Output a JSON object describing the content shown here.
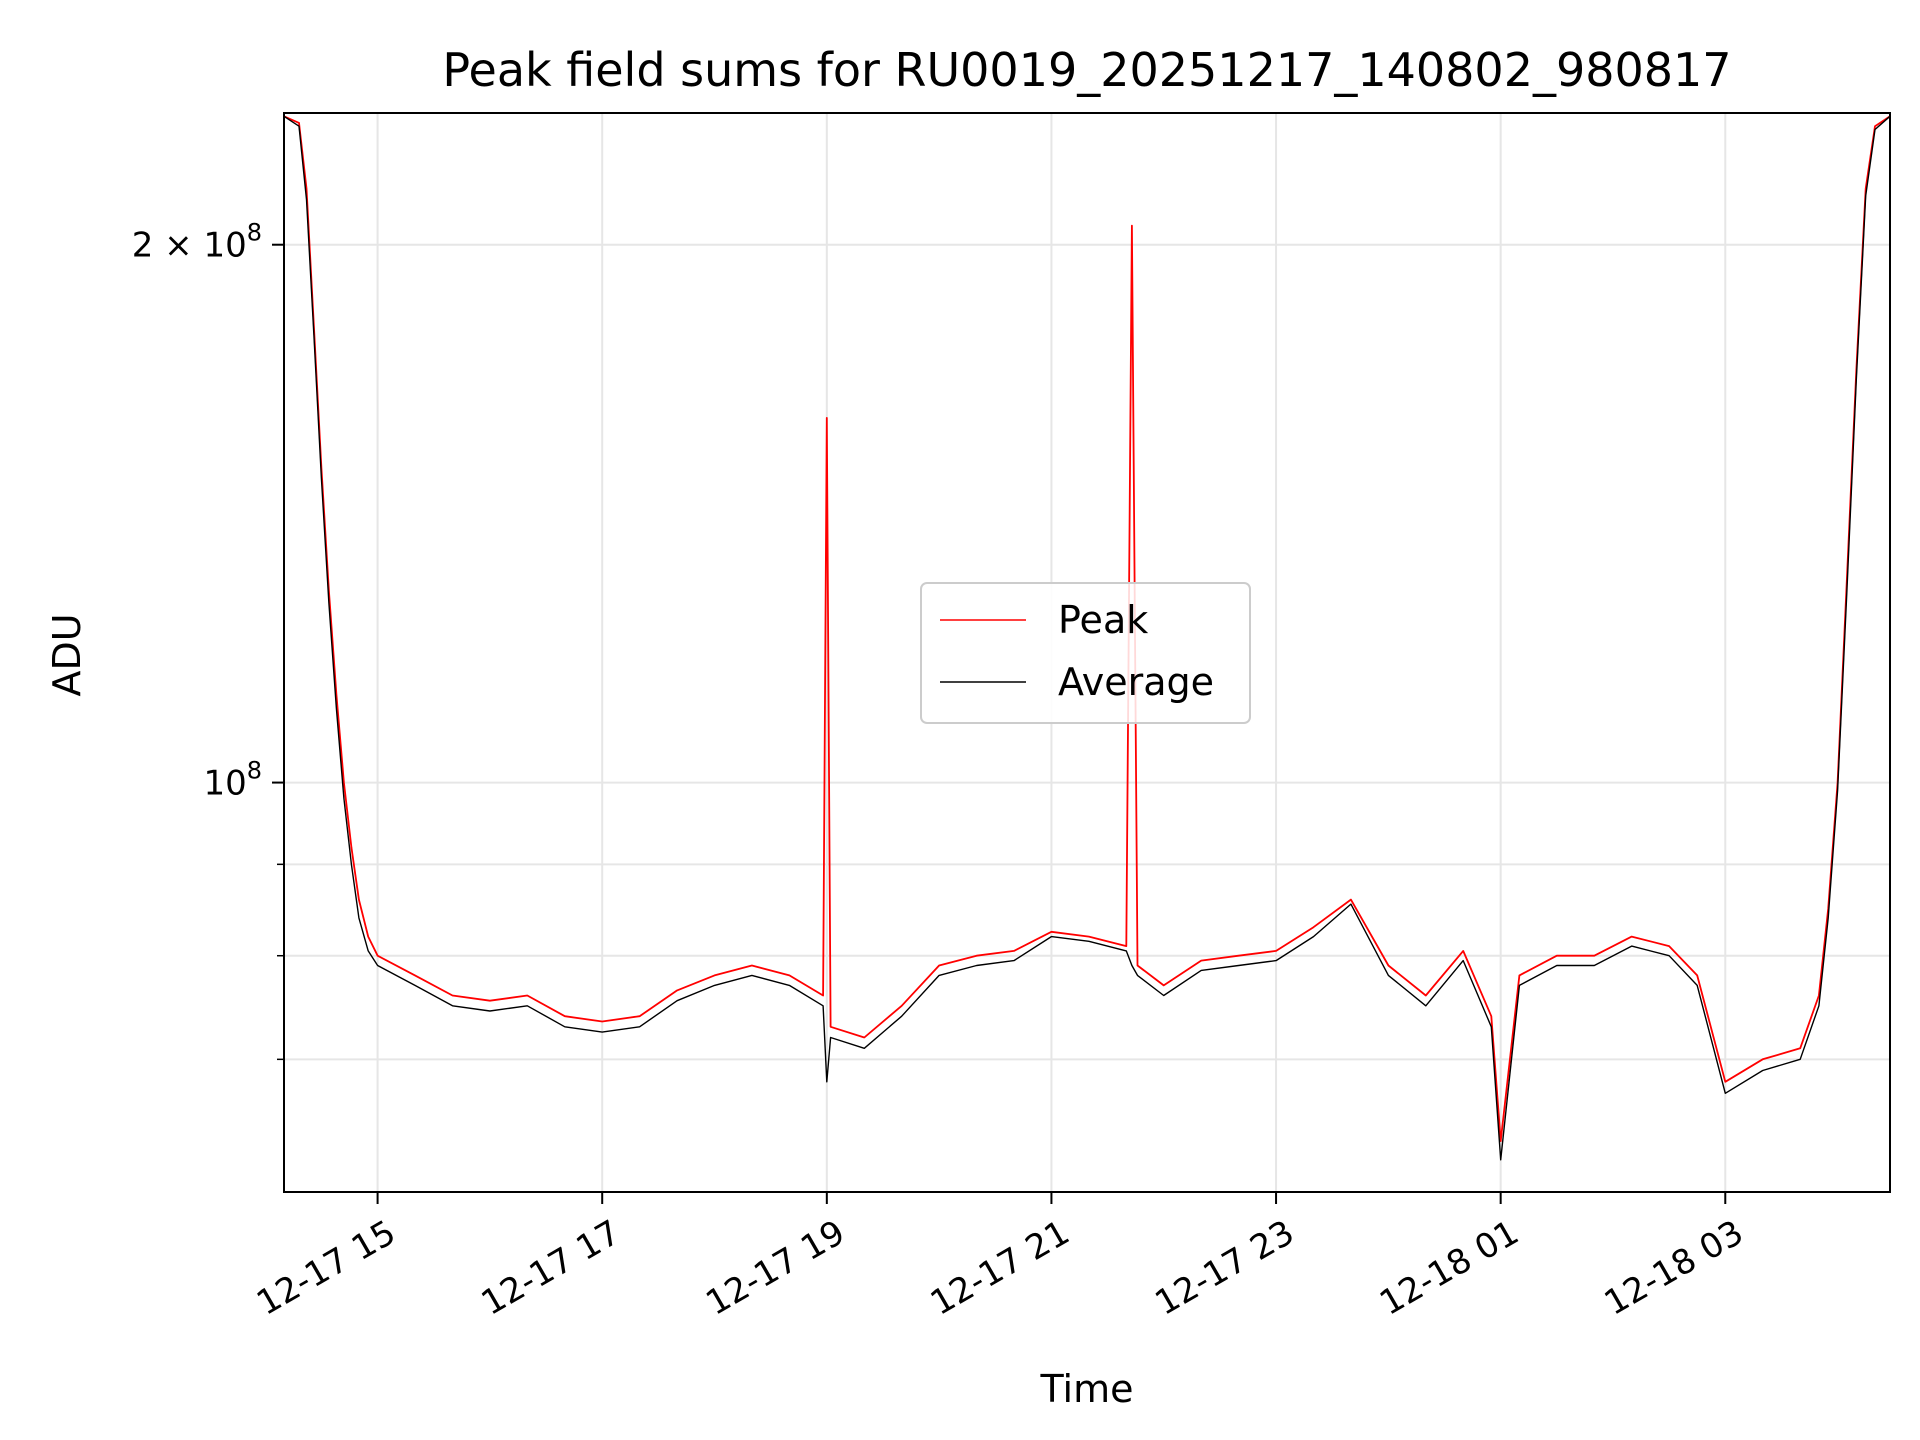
{
  "chart_data": {
    "type": "line",
    "title": "Peak field sums for RU0019_20251217_140802_980817",
    "xlabel": "Time",
    "ylabel": "ADU",
    "yscale": "log",
    "xlim": [
      "2025-12-17 14:10",
      "2025-12-18 04:28"
    ],
    "ylim": [
      59000000,
      237000000
    ],
    "grid": true,
    "legend_placement": "center",
    "x_ticks": [
      {
        "t": "2025-12-17 15:00",
        "label": "12-17 15"
      },
      {
        "t": "2025-12-17 17:00",
        "label": "12-17 17"
      },
      {
        "t": "2025-12-17 19:00",
        "label": "12-17 19"
      },
      {
        "t": "2025-12-17 21:00",
        "label": "12-17 21"
      },
      {
        "t": "2025-12-17 23:00",
        "label": "12-17 23"
      },
      {
        "t": "2025-12-18 01:00",
        "label": "12-18 01"
      },
      {
        "t": "2025-12-18 03:00",
        "label": "12-18 03"
      }
    ],
    "y_ticks_major": [
      {
        "value": 100000000,
        "base": "10",
        "exp": "8",
        "mantissa": ""
      },
      {
        "value": 200000000,
        "base": "10",
        "exp": "8",
        "mantissa": "2 × "
      }
    ],
    "y_minor_gridlines": [
      70000000,
      80000000,
      90000000
    ],
    "series": [
      {
        "name": "Peak",
        "color": "#ff0000",
        "points": [
          [
            "2025-12-17 14:10",
            236000000
          ],
          [
            "2025-12-17 14:18",
            234000000
          ],
          [
            "2025-12-17 14:22",
            215000000
          ],
          [
            "2025-12-17 14:26",
            180000000
          ],
          [
            "2025-12-17 14:30",
            150000000
          ],
          [
            "2025-12-17 14:34",
            128000000
          ],
          [
            "2025-12-17 14:38",
            112000000
          ],
          [
            "2025-12-17 14:42",
            100000000
          ],
          [
            "2025-12-17 14:46",
            92000000
          ],
          [
            "2025-12-17 14:50",
            86000000
          ],
          [
            "2025-12-17 14:55",
            82000000
          ],
          [
            "2025-12-17 15:00",
            80000000
          ],
          [
            "2025-12-17 15:20",
            78000000
          ],
          [
            "2025-12-17 15:40",
            76000000
          ],
          [
            "2025-12-17 16:00",
            75500000
          ],
          [
            "2025-12-17 16:20",
            76000000
          ],
          [
            "2025-12-17 16:40",
            74000000
          ],
          [
            "2025-12-17 17:00",
            73500000
          ],
          [
            "2025-12-17 17:20",
            74000000
          ],
          [
            "2025-12-17 17:40",
            76500000
          ],
          [
            "2025-12-17 18:00",
            78000000
          ],
          [
            "2025-12-17 18:20",
            79000000
          ],
          [
            "2025-12-17 18:40",
            78000000
          ],
          [
            "2025-12-17 18:58",
            76000000
          ],
          [
            "2025-12-17 19:00",
            160000000
          ],
          [
            "2025-12-17 19:02",
            73000000
          ],
          [
            "2025-12-17 19:20",
            72000000
          ],
          [
            "2025-12-17 19:40",
            75000000
          ],
          [
            "2025-12-17 20:00",
            79000000
          ],
          [
            "2025-12-17 20:20",
            80000000
          ],
          [
            "2025-12-17 20:40",
            80500000
          ],
          [
            "2025-12-17 21:00",
            82500000
          ],
          [
            "2025-12-17 21:20",
            82000000
          ],
          [
            "2025-12-17 21:40",
            81000000
          ],
          [
            "2025-12-17 21:43",
            205000000
          ],
          [
            "2025-12-17 21:46",
            79000000
          ],
          [
            "2025-12-17 22:00",
            77000000
          ],
          [
            "2025-12-17 22:20",
            79500000
          ],
          [
            "2025-12-17 22:40",
            80000000
          ],
          [
            "2025-12-17 23:00",
            80500000
          ],
          [
            "2025-12-17 23:20",
            83000000
          ],
          [
            "2025-12-17 23:40",
            86000000
          ],
          [
            "2025-12-18 00:00",
            79000000
          ],
          [
            "2025-12-18 00:20",
            76000000
          ],
          [
            "2025-12-18 00:40",
            80500000
          ],
          [
            "2025-12-18 00:55",
            74000000
          ],
          [
            "2025-12-18 01:00",
            63000000
          ],
          [
            "2025-12-18 01:10",
            78000000
          ],
          [
            "2025-12-18 01:30",
            80000000
          ],
          [
            "2025-12-18 01:50",
            80000000
          ],
          [
            "2025-12-18 02:10",
            82000000
          ],
          [
            "2025-12-18 02:30",
            81000000
          ],
          [
            "2025-12-18 02:45",
            78000000
          ],
          [
            "2025-12-18 03:00",
            68000000
          ],
          [
            "2025-12-18 03:20",
            70000000
          ],
          [
            "2025-12-18 03:40",
            71000000
          ],
          [
            "2025-12-18 03:50",
            76000000
          ],
          [
            "2025-12-18 03:55",
            85000000
          ],
          [
            "2025-12-18 04:00",
            100000000
          ],
          [
            "2025-12-18 04:05",
            130000000
          ],
          [
            "2025-12-18 04:10",
            170000000
          ],
          [
            "2025-12-18 04:15",
            215000000
          ],
          [
            "2025-12-18 04:20",
            233000000
          ],
          [
            "2025-12-18 04:28",
            236000000
          ]
        ]
      },
      {
        "name": "Average",
        "color": "#000000",
        "points": [
          [
            "2025-12-17 14:10",
            236000000
          ],
          [
            "2025-12-17 14:18",
            233000000
          ],
          [
            "2025-12-17 14:22",
            212000000
          ],
          [
            "2025-12-17 14:26",
            178000000
          ],
          [
            "2025-12-17 14:30",
            148000000
          ],
          [
            "2025-12-17 14:34",
            126000000
          ],
          [
            "2025-12-17 14:38",
            110000000
          ],
          [
            "2025-12-17 14:42",
            98000000
          ],
          [
            "2025-12-17 14:46",
            90000000
          ],
          [
            "2025-12-17 14:50",
            84000000
          ],
          [
            "2025-12-17 14:55",
            80500000
          ],
          [
            "2025-12-17 15:00",
            79000000
          ],
          [
            "2025-12-17 15:20",
            77000000
          ],
          [
            "2025-12-17 15:40",
            75000000
          ],
          [
            "2025-12-17 16:00",
            74500000
          ],
          [
            "2025-12-17 16:20",
            75000000
          ],
          [
            "2025-12-17 16:40",
            73000000
          ],
          [
            "2025-12-17 17:00",
            72500000
          ],
          [
            "2025-12-17 17:20",
            73000000
          ],
          [
            "2025-12-17 17:40",
            75500000
          ],
          [
            "2025-12-17 18:00",
            77000000
          ],
          [
            "2025-12-17 18:20",
            78000000
          ],
          [
            "2025-12-17 18:40",
            77000000
          ],
          [
            "2025-12-17 18:58",
            75000000
          ],
          [
            "2025-12-17 19:00",
            68000000
          ],
          [
            "2025-12-17 19:02",
            72000000
          ],
          [
            "2025-12-17 19:20",
            71000000
          ],
          [
            "2025-12-17 19:40",
            74000000
          ],
          [
            "2025-12-17 20:00",
            78000000
          ],
          [
            "2025-12-17 20:20",
            79000000
          ],
          [
            "2025-12-17 20:40",
            79500000
          ],
          [
            "2025-12-17 21:00",
            82000000
          ],
          [
            "2025-12-17 21:20",
            81500000
          ],
          [
            "2025-12-17 21:40",
            80500000
          ],
          [
            "2025-12-17 21:43",
            79000000
          ],
          [
            "2025-12-17 21:46",
            78000000
          ],
          [
            "2025-12-17 22:00",
            76000000
          ],
          [
            "2025-12-17 22:20",
            78500000
          ],
          [
            "2025-12-17 22:40",
            79000000
          ],
          [
            "2025-12-17 23:00",
            79500000
          ],
          [
            "2025-12-17 23:20",
            82000000
          ],
          [
            "2025-12-17 23:40",
            85500000
          ],
          [
            "2025-12-18 00:00",
            78000000
          ],
          [
            "2025-12-18 00:20",
            75000000
          ],
          [
            "2025-12-18 00:40",
            79500000
          ],
          [
            "2025-12-18 00:55",
            73000000
          ],
          [
            "2025-12-18 01:00",
            61500000
          ],
          [
            "2025-12-18 01:10",
            77000000
          ],
          [
            "2025-12-18 01:30",
            79000000
          ],
          [
            "2025-12-18 01:50",
            79000000
          ],
          [
            "2025-12-18 02:10",
            81000000
          ],
          [
            "2025-12-18 02:30",
            80000000
          ],
          [
            "2025-12-18 02:45",
            77000000
          ],
          [
            "2025-12-18 03:00",
            67000000
          ],
          [
            "2025-12-18 03:20",
            69000000
          ],
          [
            "2025-12-18 03:40",
            70000000
          ],
          [
            "2025-12-18 03:50",
            75000000
          ],
          [
            "2025-12-18 03:55",
            84000000
          ],
          [
            "2025-12-18 04:00",
            99000000
          ],
          [
            "2025-12-18 04:05",
            128000000
          ],
          [
            "2025-12-18 04:10",
            168000000
          ],
          [
            "2025-12-18 04:15",
            213000000
          ],
          [
            "2025-12-18 04:20",
            232000000
          ],
          [
            "2025-12-18 04:28",
            236000000
          ]
        ]
      }
    ]
  }
}
